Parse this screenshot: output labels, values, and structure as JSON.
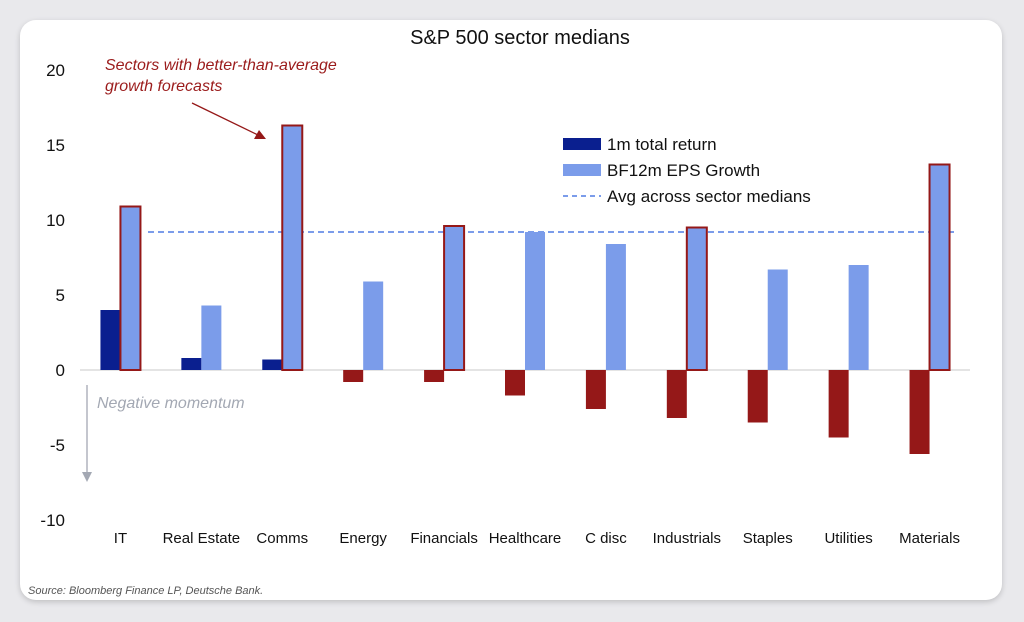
{
  "chart_data": {
    "type": "bar",
    "title": "S&P 500 sector medians",
    "categories": [
      "IT",
      "Real Estate",
      "Comms",
      "Energy",
      "Financials",
      "Healthcare",
      "C disc",
      "Industrials",
      "Staples",
      "Utilities",
      "Materials"
    ],
    "series": [
      {
        "name": "1m total return",
        "values": [
          4.0,
          0.8,
          0.7,
          -0.8,
          -0.8,
          -1.7,
          -2.6,
          -3.2,
          -3.5,
          -4.5,
          -5.6
        ],
        "color": "#0a1f8f",
        "negative_color": "#951818"
      },
      {
        "name": "BF12m EPS Growth",
        "values": [
          10.9,
          4.3,
          16.3,
          5.9,
          9.6,
          9.2,
          8.4,
          9.5,
          6.7,
          7.0,
          13.7
        ],
        "color": "#7b9cea",
        "highlight_color": "#951818"
      }
    ],
    "reference_line": {
      "name": "Avg across sector medians",
      "value": 9.2,
      "color": "#7b9cea",
      "style": "dashed"
    },
    "ylim": [
      -10,
      20
    ],
    "yticks": [
      -10,
      -5,
      0,
      5,
      10,
      15,
      20
    ],
    "annotations": {
      "top": [
        "Sectors with better-than-average",
        "growth forecasts"
      ],
      "negative": "Negative momentum"
    },
    "source": "Source: Bloomberg Finance LP, Deutsche Bank."
  }
}
